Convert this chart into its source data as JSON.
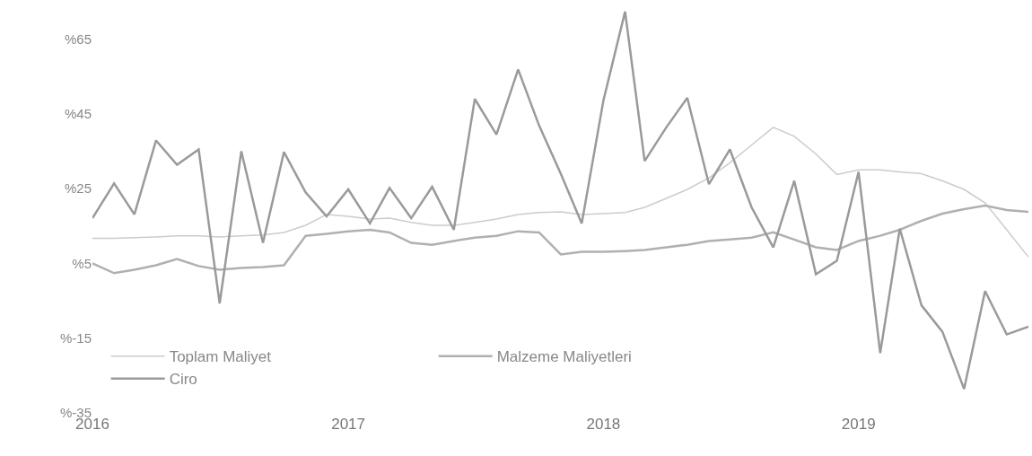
{
  "chart_data": {
    "type": "line",
    "x": [
      "2016-01",
      "2016-02",
      "2016-03",
      "2016-04",
      "2016-05",
      "2016-06",
      "2016-07",
      "2016-08",
      "2016-09",
      "2016-10",
      "2016-11",
      "2016-12",
      "2017-01",
      "2017-02",
      "2017-03",
      "2017-04",
      "2017-05",
      "2017-06",
      "2017-07",
      "2017-08",
      "2017-09",
      "2017-10",
      "2017-11",
      "2017-12",
      "2018-01",
      "2018-02",
      "2018-03",
      "2018-04",
      "2018-05",
      "2018-06",
      "2018-07",
      "2018-08",
      "2018-09",
      "2018-10",
      "2018-11",
      "2018-12",
      "2019-01",
      "2019-02",
      "2019-03",
      "2019-04",
      "2019-05",
      "2019-06",
      "2019-07",
      "2019-08",
      "2019-09"
    ],
    "series": [
      {
        "name": "Toplam Maliyet",
        "color": "#cccccc",
        "values": [
          11.7,
          11.7,
          11.9,
          12.1,
          12.4,
          12.4,
          12.1,
          12.4,
          12.6,
          13.3,
          15.2,
          18.1,
          17.6,
          16.9,
          17.1,
          16,
          15.2,
          15.2,
          16,
          16.9,
          18.1,
          18.6,
          18.8,
          18.1,
          18.3,
          18.6,
          20,
          22.4,
          24.8,
          27.9,
          31.9,
          36.7,
          41.4,
          39,
          34.3,
          28.8,
          30,
          30,
          29.5,
          29,
          27.1,
          24.8,
          21.2,
          14,
          6.7
        ]
      },
      {
        "name": "Malzeme Maliyetleri",
        "color": "#b0b0b0",
        "values": [
          5,
          2.4,
          3.3,
          4.5,
          6.2,
          4.3,
          3.3,
          3.8,
          4,
          4.5,
          12.4,
          12.9,
          13.6,
          14,
          13.3,
          10.5,
          10,
          11,
          11.9,
          12.4,
          13.6,
          13.3,
          7.4,
          8.1,
          8.1,
          8.3,
          8.6,
          9.3,
          10,
          11,
          11.4,
          11.9,
          13.3,
          11.4,
          9.3,
          8.6,
          11,
          12.4,
          14,
          16.4,
          18.3,
          19.5,
          20.5,
          19.3,
          18.8
        ]
      },
      {
        "name": "Ciro",
        "color": "#9a9a9a",
        "values": [
          17.1,
          26.4,
          18.1,
          37.9,
          31.4,
          35.5,
          -5.7,
          35,
          10.5,
          34.8,
          24,
          17.6,
          24.8,
          15.7,
          25.2,
          17.1,
          25.5,
          14,
          49,
          39.5,
          56.9,
          41.9,
          29,
          15.7,
          48.6,
          72.4,
          32.4,
          41.4,
          49.3,
          26.2,
          35.5,
          20,
          9.3,
          27.1,
          2.1,
          5.7,
          29.5,
          -19,
          14.3,
          -6.2,
          -13.3,
          -28.6,
          -2.4,
          -14,
          -11.9
        ]
      }
    ],
    "xlim": [
      "2016-01-01",
      "2019-09-01"
    ],
    "xticks": [
      {
        "value": "2016-01-01",
        "label": "2016"
      },
      {
        "value": "2017-01-01",
        "label": "2017"
      },
      {
        "value": "2018-01-01",
        "label": "2018"
      },
      {
        "value": "2019-01-01",
        "label": "2019"
      }
    ],
    "ylim": [
      -35,
      75
    ],
    "yticks": [
      {
        "value": 65,
        "label": "%65"
      },
      {
        "value": 45,
        "label": "%45"
      },
      {
        "value": 25,
        "label": "%25"
      },
      {
        "value": 5,
        "label": "%5"
      },
      {
        "value": -15,
        "label": "%-15"
      },
      {
        "value": -35,
        "label": "%-35"
      }
    ],
    "legend": "bottom left"
  }
}
